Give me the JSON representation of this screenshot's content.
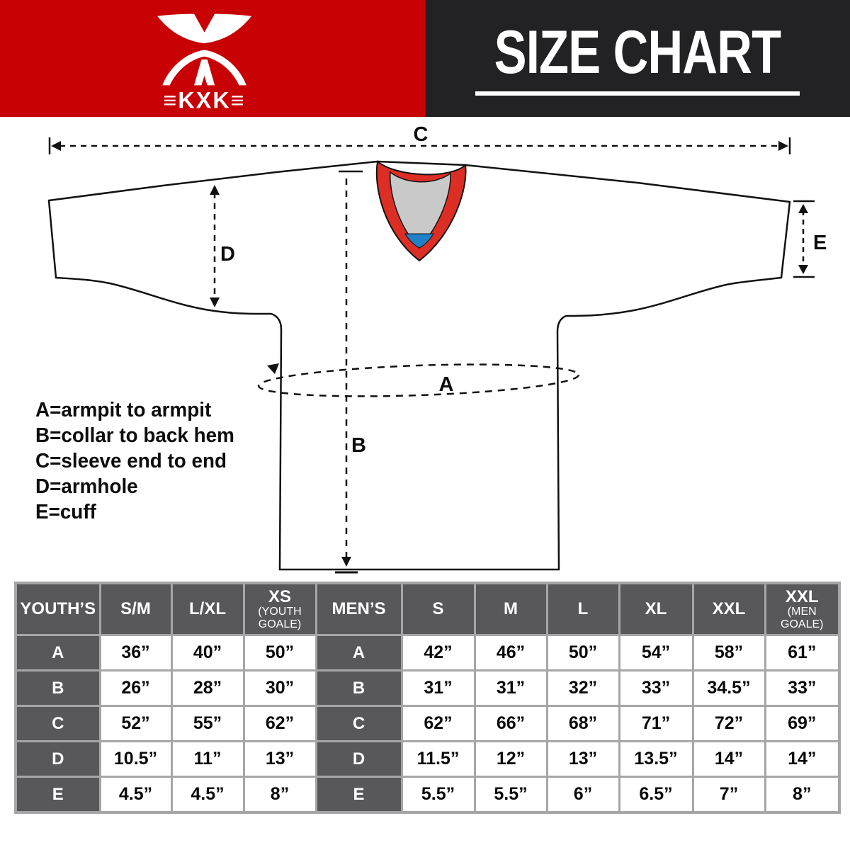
{
  "header": {
    "brand_logo_text": "≡KXK≡",
    "title": "SIZE CHART",
    "red": "#c70104",
    "black": "#222225"
  },
  "diagram": {
    "labels": {
      "a": "A",
      "b": "B",
      "c": "C",
      "d": "D",
      "e": "E"
    },
    "legend": [
      "A=armpit to armpit",
      "B=collar to back hem",
      "C=sleeve end to end",
      "D=armhole",
      "E=cuff"
    ],
    "colors": {
      "collar_red": "#dc2e24",
      "collar_gray": "#c9c9c9",
      "collar_blue": "#2080c6",
      "line": "#111111"
    }
  },
  "size_table": {
    "youth": {
      "title": "YOUTH’S",
      "columns": [
        {
          "label": "S/M",
          "sub": ""
        },
        {
          "label": "L/XL",
          "sub": ""
        },
        {
          "label": "XS",
          "sub": "(YOUTH GOALE)"
        }
      ],
      "rows": [
        {
          "label": "A",
          "values": [
            "36”",
            "40”",
            "50”"
          ]
        },
        {
          "label": "B",
          "values": [
            "26”",
            "28”",
            "30”"
          ]
        },
        {
          "label": "C",
          "values": [
            "52”",
            "55”",
            "62”"
          ]
        },
        {
          "label": "D",
          "values": [
            "10.5”",
            "11”",
            "13”"
          ]
        },
        {
          "label": "E",
          "values": [
            "4.5”",
            "4.5”",
            "8”"
          ]
        }
      ]
    },
    "men": {
      "title": "MEN’S",
      "columns": [
        {
          "label": "S",
          "sub": ""
        },
        {
          "label": "M",
          "sub": ""
        },
        {
          "label": "L",
          "sub": ""
        },
        {
          "label": "XL",
          "sub": ""
        },
        {
          "label": "XXL",
          "sub": ""
        },
        {
          "label": "XXL",
          "sub": "(MEN GOALE)"
        }
      ],
      "rows": [
        {
          "label": "A",
          "values": [
            "42”",
            "46”",
            "50”",
            "54”",
            "58”",
            "61”"
          ]
        },
        {
          "label": "B",
          "values": [
            "31”",
            "31”",
            "32”",
            "33”",
            "34.5”",
            "33”"
          ]
        },
        {
          "label": "C",
          "values": [
            "62”",
            "66”",
            "68”",
            "71”",
            "72”",
            "69”"
          ]
        },
        {
          "label": "D",
          "values": [
            "11.5”",
            "12”",
            "13”",
            "13.5”",
            "14”",
            "14”"
          ]
        },
        {
          "label": "E",
          "values": [
            "5.5”",
            "5.5”",
            "6”",
            "6.5”",
            "7”",
            "8”"
          ]
        }
      ]
    }
  }
}
